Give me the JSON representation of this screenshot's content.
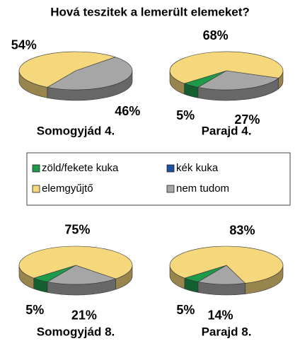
{
  "title": "Hová teszitek a lemerült elemeket?",
  "chart_data": [
    {
      "type": "pie",
      "title": "Somogyjád 4.",
      "categories": [
        "zöld/fekete kuka",
        "kék kuka",
        "elemgyűjtő",
        "nem tudom"
      ],
      "values": [
        0,
        0,
        54,
        46
      ],
      "value_labels": [
        null,
        null,
        "54%",
        "46%"
      ],
      "colors": [
        "#1e9a4b",
        "#1f4fa0",
        "#f5d77c",
        "#a6a6a6"
      ]
    },
    {
      "type": "pie",
      "title": "Parajd 4.",
      "categories": [
        "zöld/fekete kuka",
        "kék kuka",
        "elemgyűjtő",
        "nem tudom"
      ],
      "values": [
        5,
        0,
        68,
        27
      ],
      "value_labels": [
        "5%",
        null,
        "68%",
        "27%"
      ],
      "colors": [
        "#1e9a4b",
        "#1f4fa0",
        "#f5d77c",
        "#a6a6a6"
      ]
    },
    {
      "type": "pie",
      "title": "Somogyjád 8.",
      "categories": [
        "zöld/fekete kuka",
        "kék kuka",
        "elemgyűjtő",
        "nem tudom"
      ],
      "values": [
        5,
        0,
        75,
        21
      ],
      "value_labels": [
        "5%",
        null,
        "75%",
        "21%"
      ],
      "colors": [
        "#1e9a4b",
        "#1f4fa0",
        "#f5d77c",
        "#a6a6a6"
      ]
    },
    {
      "type": "pie",
      "title": "Parajd 8.",
      "categories": [
        "zöld/fekete kuka",
        "kék kuka",
        "elemgyűjtő",
        "nem tudom"
      ],
      "values": [
        5,
        0,
        83,
        14
      ],
      "value_labels": [
        "5%",
        null,
        "83%",
        "14%"
      ],
      "colors": [
        "#1e9a4b",
        "#1f4fa0",
        "#f5d77c",
        "#a6a6a6"
      ]
    }
  ]
}
